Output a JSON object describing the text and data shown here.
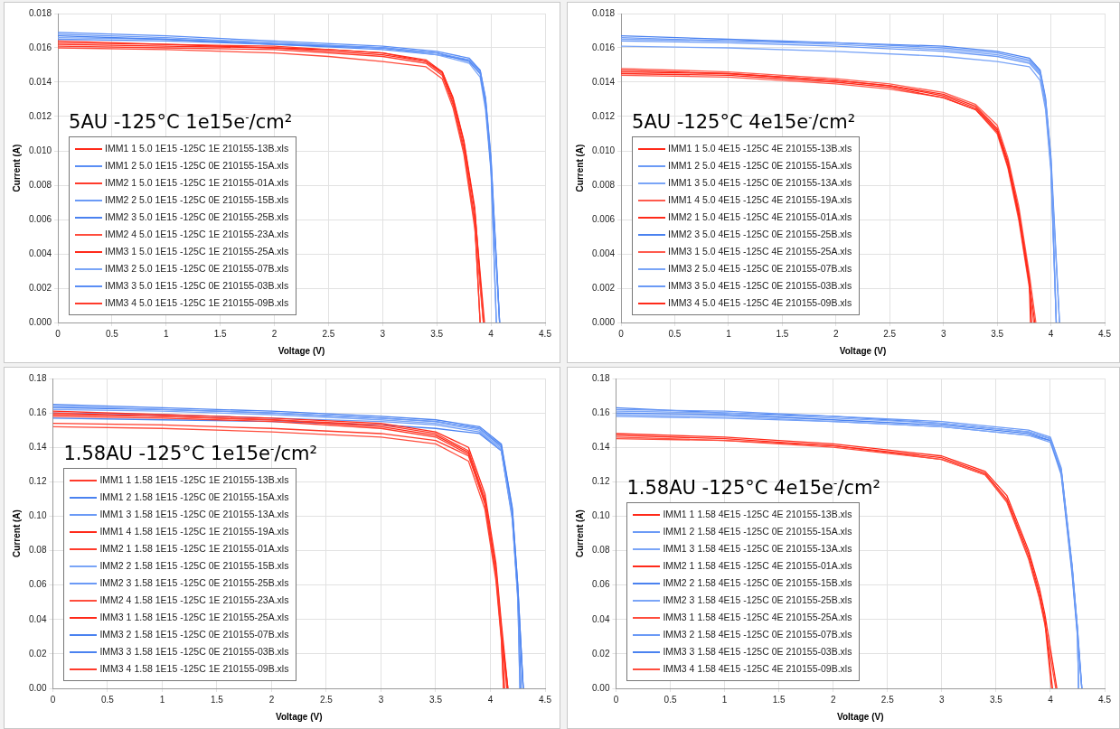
{
  "chart_data": [
    {
      "type": "line",
      "title": "5AU -125°C 1e15e$^{-}$/cm²",
      "xlabel": "Voltage (V)",
      "ylabel": "Current (A)",
      "xlim": [
        0,
        4.5
      ],
      "xticks": [
        0,
        0.5,
        1,
        1.5,
        2,
        2.5,
        3,
        3.5,
        4,
        4.5
      ],
      "ylim": [
        0,
        0.018
      ],
      "yticks": [
        {
          "value": 0,
          "label": "0.000"
        },
        {
          "value": 0.002,
          "label": "0.002"
        },
        {
          "value": 0.004,
          "label": "0.004"
        },
        {
          "value": 0.006,
          "label": "0.006"
        },
        {
          "value": 0.008,
          "label": "0.008"
        },
        {
          "value": 0.01,
          "label": "0.010"
        },
        {
          "value": 0.012,
          "label": "0.012"
        },
        {
          "value": 0.014,
          "label": "0.014"
        },
        {
          "value": 0.016,
          "label": "0.016"
        },
        {
          "value": 0.018,
          "label": "0.018"
        }
      ],
      "grid": true,
      "legend": "bottom left",
      "marker": "none",
      "line_style": "solid",
      "series": [
        {
          "name": "IMM1 1 5.0 1E15 -125C 1E 210155-13B.xls",
          "color": "#ff2a1a",
          "x": [
            0,
            1,
            2,
            2.5,
            3,
            3.4,
            3.55,
            3.65,
            3.75,
            3.85,
            3.94
          ],
          "values": [
            0.0164,
            0.0162,
            0.016,
            0.0159,
            0.0157,
            0.0153,
            0.0146,
            0.013,
            0.0105,
            0.0065,
            0
          ]
        },
        {
          "name": "IMM1 2 5.0 1E15 -125C 0E 210155-15A.xls",
          "color": "#5a8ef5",
          "x": [
            0,
            1,
            2,
            3,
            3.5,
            3.8,
            3.9,
            3.95,
            4,
            4.08
          ],
          "values": [
            0.0169,
            0.0167,
            0.0164,
            0.0161,
            0.0158,
            0.0154,
            0.0147,
            0.013,
            0.0095,
            0
          ]
        },
        {
          "name": "IMM2 1 5.0 1E15 -125C 1E 210155-01A.xls",
          "color": "#ff3b2b",
          "x": [
            0,
            1,
            2,
            2.5,
            3,
            3.4,
            3.55,
            3.65,
            3.75,
            3.85,
            3.9
          ],
          "values": [
            0.0163,
            0.0162,
            0.0161,
            0.0159,
            0.0157,
            0.0152,
            0.0145,
            0.0128,
            0.0102,
            0.006,
            0
          ]
        },
        {
          "name": "IMM2 2 5.0 1E15 -125C 0E 210155-15B.xls",
          "color": "#6b9af6",
          "x": [
            0,
            1,
            2,
            3,
            3.5,
            3.8,
            3.9,
            3.95,
            4,
            4.05
          ],
          "values": [
            0.0168,
            0.0166,
            0.0163,
            0.016,
            0.0157,
            0.0153,
            0.0146,
            0.0128,
            0.0092,
            0
          ]
        },
        {
          "name": "IMM2 3 5.0 1E15 -125C 0E 210155-25B.xls",
          "color": "#4a82f0",
          "x": [
            0,
            1,
            2,
            3,
            3.5,
            3.8,
            3.9,
            3.95,
            4,
            4.08
          ],
          "values": [
            0.0167,
            0.0165,
            0.0162,
            0.016,
            0.0157,
            0.0152,
            0.0145,
            0.0127,
            0.009,
            0
          ]
        },
        {
          "name": "IMM2 4 5.0 1E15 -125C 1E 210155-23A.xls",
          "color": "#ff4d3d",
          "x": [
            0,
            1,
            2,
            2.5,
            3,
            3.4,
            3.55,
            3.65,
            3.75,
            3.85,
            3.93
          ],
          "values": [
            0.016,
            0.0159,
            0.0157,
            0.0155,
            0.0152,
            0.0149,
            0.0142,
            0.0125,
            0.0098,
            0.0055,
            0
          ]
        },
        {
          "name": "IMM3 1 5.0 1E15 -125C 1E 210155-25A.xls",
          "color": "#ff2a1a",
          "x": [
            0,
            1,
            2,
            2.5,
            3,
            3.4,
            3.55,
            3.65,
            3.75,
            3.85,
            3.93
          ],
          "values": [
            0.0162,
            0.0161,
            0.016,
            0.0158,
            0.0156,
            0.0152,
            0.0146,
            0.0131,
            0.0106,
            0.0067,
            0
          ]
        },
        {
          "name": "IMM3 2 5.0 1E15 -125C 0E 210155-07B.xls",
          "color": "#7aa5f7",
          "x": [
            0,
            1,
            2,
            3,
            3.5,
            3.8,
            3.9,
            3.95,
            4,
            4.05
          ],
          "values": [
            0.0166,
            0.0165,
            0.0163,
            0.016,
            0.0156,
            0.0151,
            0.0143,
            0.0124,
            0.0088,
            0
          ]
        },
        {
          "name": "IMM3 3 5.0 1E15 -125C 0E 210155-03B.xls",
          "color": "#5a8ef5",
          "x": [
            0,
            1,
            2,
            3,
            3.5,
            3.8,
            3.9,
            3.95,
            4,
            4.08
          ],
          "values": [
            0.0165,
            0.0164,
            0.0162,
            0.0159,
            0.0156,
            0.0153,
            0.0147,
            0.0131,
            0.0097,
            0
          ]
        },
        {
          "name": "IMM3 4 5.0 1E15 -125C 1E 210155-09B.xls",
          "color": "#ff3b2b",
          "x": [
            0,
            1,
            2,
            2.5,
            3,
            3.4,
            3.55,
            3.65,
            3.75,
            3.85,
            3.9
          ],
          "values": [
            0.0161,
            0.016,
            0.0159,
            0.0157,
            0.0155,
            0.0151,
            0.0144,
            0.0127,
            0.01,
            0.0058,
            0
          ]
        }
      ]
    },
    {
      "type": "line",
      "title": "5AU -125°C 4e15e$^{-}$/cm²",
      "xlabel": "Voltage (V)",
      "ylabel": "Current (A)",
      "xlim": [
        0,
        4.5
      ],
      "xticks": [
        0,
        0.5,
        1,
        1.5,
        2,
        2.5,
        3,
        3.5,
        4,
        4.5
      ],
      "ylim": [
        0,
        0.018
      ],
      "yticks": [
        {
          "value": 0,
          "label": "0.000"
        },
        {
          "value": 0.002,
          "label": "0.002"
        },
        {
          "value": 0.004,
          "label": "0.004"
        },
        {
          "value": 0.006,
          "label": "0.006"
        },
        {
          "value": 0.008,
          "label": "0.008"
        },
        {
          "value": 0.01,
          "label": "0.010"
        },
        {
          "value": 0.012,
          "label": "0.012"
        },
        {
          "value": 0.014,
          "label": "0.014"
        },
        {
          "value": 0.016,
          "label": "0.016"
        },
        {
          "value": 0.018,
          "label": "0.018"
        }
      ],
      "grid": true,
      "legend": "bottom left",
      "marker": "none",
      "line_style": "solid",
      "series": [
        {
          "name": "IMM1 1 5.0 4E15 -125C 4E 210155-13B.xls",
          "color": "#ff2a1a",
          "x": [
            0,
            1,
            2,
            2.5,
            3,
            3.3,
            3.5,
            3.6,
            3.7,
            3.8,
            3.82
          ],
          "values": [
            0.0147,
            0.0145,
            0.0141,
            0.0138,
            0.0133,
            0.0126,
            0.0113,
            0.0094,
            0.0065,
            0.0025,
            0
          ]
        },
        {
          "name": "IMM1 2 5.0 4E15 -125C 0E 210155-15A.xls",
          "color": "#6b9af6",
          "x": [
            0,
            1,
            2,
            3,
            3.5,
            3.8,
            3.9,
            3.95,
            4,
            4.05
          ],
          "values": [
            0.0166,
            0.0164,
            0.0163,
            0.016,
            0.0157,
            0.0153,
            0.0146,
            0.013,
            0.0095,
            0
          ]
        },
        {
          "name": "IMM1 3 5.0 4E15 -125C 0E 210155-13A.xls",
          "color": "#7aa5f7",
          "x": [
            0,
            1,
            2,
            3,
            3.5,
            3.8,
            3.9,
            3.95,
            4,
            4.08
          ],
          "values": [
            0.0165,
            0.0164,
            0.0162,
            0.0159,
            0.0156,
            0.0152,
            0.0145,
            0.0128,
            0.0092,
            0
          ]
        },
        {
          "name": "IMM1 4 5.0 4E15 -125C 4E 210155-19A.xls",
          "color": "#ff5a4d",
          "x": [
            0,
            1,
            2,
            2.5,
            3,
            3.3,
            3.5,
            3.6,
            3.7,
            3.8,
            3.86
          ],
          "values": [
            0.0148,
            0.0146,
            0.0142,
            0.0139,
            0.0134,
            0.0127,
            0.0115,
            0.0096,
            0.0068,
            0.0028,
            0
          ]
        },
        {
          "name": "IMM2 1 5.0 4E15 -125C 4E 210155-01A.xls",
          "color": "#ff2a1a",
          "x": [
            0,
            1,
            2,
            2.5,
            3,
            3.3,
            3.5,
            3.6,
            3.7,
            3.8,
            3.81
          ],
          "values": [
            0.0145,
            0.0144,
            0.014,
            0.0137,
            0.0131,
            0.0124,
            0.0111,
            0.0091,
            0.0062,
            0.0022,
            0
          ]
        },
        {
          "name": "IMM2 3 5.0 4E15 -125C 0E 210155-25B.xls",
          "color": "#4a82f0",
          "x": [
            0,
            1,
            2,
            3,
            3.5,
            3.8,
            3.9,
            3.95,
            4,
            4.08
          ],
          "values": [
            0.0167,
            0.0165,
            0.0163,
            0.0161,
            0.0158,
            0.0154,
            0.0147,
            0.0131,
            0.0097,
            0
          ]
        },
        {
          "name": "IMM3 1 5.0 4E15 -125C 4E 210155-25A.xls",
          "color": "#ff5a4d",
          "x": [
            0,
            1,
            2,
            2.5,
            3,
            3.3,
            3.5,
            3.6,
            3.7,
            3.8,
            3.84
          ],
          "values": [
            0.0144,
            0.0143,
            0.0139,
            0.0136,
            0.0131,
            0.0124,
            0.011,
            0.009,
            0.006,
            0.002,
            0
          ]
        },
        {
          "name": "IMM3 2 5.0 4E15 -125C 0E 210155-07B.xls",
          "color": "#7aa5f7",
          "x": [
            0,
            1,
            2,
            3,
            3.5,
            3.8,
            3.9,
            3.95,
            4,
            4.05
          ],
          "values": [
            0.0161,
            0.016,
            0.0158,
            0.0155,
            0.0152,
            0.0149,
            0.0141,
            0.0124,
            0.0088,
            0
          ]
        },
        {
          "name": "IMM3 3 5.0 4E15 -125C 0E 210155-03B.xls",
          "color": "#6b9af6",
          "x": [
            0,
            1,
            2,
            3,
            3.5,
            3.8,
            3.9,
            3.95,
            4,
            4.05
          ],
          "values": [
            0.0164,
            0.0163,
            0.0161,
            0.0158,
            0.0155,
            0.0151,
            0.0144,
            0.0127,
            0.0091,
            0
          ]
        },
        {
          "name": "IMM3 4 5.0 4E15 -125C 4E 210155-09B.xls",
          "color": "#ff2a1a",
          "x": [
            0,
            1,
            2,
            2.5,
            3,
            3.3,
            3.5,
            3.6,
            3.7,
            3.8,
            3.85
          ],
          "values": [
            0.0146,
            0.0145,
            0.0141,
            0.0138,
            0.0132,
            0.0125,
            0.0112,
            0.0093,
            0.0064,
            0.0024,
            0
          ]
        }
      ]
    },
    {
      "type": "line",
      "title": "1.58AU -125°C 1e15e$^{-}$/cm²",
      "xlabel": "Voltage (V)",
      "ylabel": "Current (A)",
      "xlim": [
        0,
        4.5
      ],
      "xticks": [
        0,
        0.5,
        1,
        1.5,
        2,
        2.5,
        3,
        3.5,
        4,
        4.5
      ],
      "ylim": [
        0,
        0.18
      ],
      "yticks": [
        {
          "value": 0,
          "label": "0.00"
        },
        {
          "value": 0.02,
          "label": "0.02"
        },
        {
          "value": 0.04,
          "label": "0.04"
        },
        {
          "value": 0.06,
          "label": "0.06"
        },
        {
          "value": 0.08,
          "label": "0.08"
        },
        {
          "value": 0.1,
          "label": "0.10"
        },
        {
          "value": 0.12,
          "label": "0.12"
        },
        {
          "value": 0.14,
          "label": "0.14"
        },
        {
          "value": 0.16,
          "label": "0.16"
        },
        {
          "value": 0.18,
          "label": "0.18"
        }
      ],
      "grid": true,
      "legend": "bottom left",
      "marker": "none",
      "line_style": "solid",
      "series": [
        {
          "name": "IMM1 1 1.58 1E15 -125C 1E 210155-13B.xls",
          "color": "#ff3b2b",
          "x": [
            0,
            1,
            2,
            3,
            3.5,
            3.8,
            3.95,
            4.05,
            4.1,
            4.13
          ],
          "values": [
            0.16,
            0.158,
            0.156,
            0.153,
            0.148,
            0.138,
            0.11,
            0.07,
            0.035,
            0
          ]
        },
        {
          "name": "IMM1 2 1.58 1E15 -125C 0E 210155-15A.xls",
          "color": "#4a82f0",
          "x": [
            0,
            1,
            2,
            3,
            3.5,
            3.9,
            4.1,
            4.2,
            4.25,
            4.3
          ],
          "values": [
            0.165,
            0.163,
            0.161,
            0.158,
            0.156,
            0.152,
            0.142,
            0.105,
            0.06,
            0
          ]
        },
        {
          "name": "IMM1 3 1.58 1E15 -125C 0E 210155-13A.xls",
          "color": "#6b9af6",
          "x": [
            0,
            1,
            2,
            3,
            3.5,
            3.9,
            4.1,
            4.2,
            4.25,
            4.27
          ],
          "values": [
            0.164,
            0.162,
            0.16,
            0.157,
            0.155,
            0.151,
            0.14,
            0.102,
            0.056,
            0
          ]
        },
        {
          "name": "IMM1 4 1.58 1E15 -125C 1E 210155-19A.xls",
          "color": "#ff2a1a",
          "x": [
            0,
            1,
            2,
            3,
            3.5,
            3.8,
            3.95,
            4.05,
            4.1,
            4.16
          ],
          "values": [
            0.161,
            0.159,
            0.157,
            0.154,
            0.149,
            0.14,
            0.113,
            0.073,
            0.038,
            0
          ]
        },
        {
          "name": "IMM2 1 1.58 1E15 -125C 1E 210155-01A.xls",
          "color": "#ff3b2b",
          "x": [
            0,
            1,
            2,
            3,
            3.5,
            3.8,
            3.95,
            4.05,
            4.1,
            4.12
          ],
          "values": [
            0.158,
            0.157,
            0.155,
            0.151,
            0.146,
            0.136,
            0.107,
            0.066,
            0.03,
            0
          ]
        },
        {
          "name": "IMM2 2 1.58 1E15 -125C 0E 210155-15B.xls",
          "color": "#7aa5f7",
          "x": [
            0,
            1,
            2,
            3,
            3.5,
            3.9,
            4.1,
            4.2,
            4.25,
            4.27
          ],
          "values": [
            0.162,
            0.161,
            0.159,
            0.156,
            0.154,
            0.15,
            0.139,
            0.1,
            0.054,
            0
          ]
        },
        {
          "name": "IMM2 3 1.58 1E15 -125C 0E 210155-25B.xls",
          "color": "#6b9af6",
          "x": [
            0,
            1,
            2,
            3,
            3.5,
            3.9,
            4.1,
            4.2,
            4.25,
            4.3
          ],
          "values": [
            0.16,
            0.159,
            0.157,
            0.155,
            0.153,
            0.149,
            0.138,
            0.098,
            0.052,
            0
          ]
        },
        {
          "name": "IMM2 4 1.58 1E15 -125C 1E 210155-23A.xls",
          "color": "#ff4d3d",
          "x": [
            0,
            1,
            2,
            3,
            3.5,
            3.8,
            3.95,
            4.05,
            4.1,
            4.12
          ],
          "values": [
            0.152,
            0.151,
            0.149,
            0.146,
            0.142,
            0.132,
            0.104,
            0.063,
            0.028,
            0
          ]
        },
        {
          "name": "IMM3 1 1.58 1E15 -125C 1E 210155-25A.xls",
          "color": "#ff2a1a",
          "x": [
            0,
            1,
            2,
            3,
            3.5,
            3.8,
            3.95,
            4.05,
            4.1,
            4.16
          ],
          "values": [
            0.159,
            0.158,
            0.156,
            0.152,
            0.147,
            0.137,
            0.109,
            0.068,
            0.033,
            0
          ]
        },
        {
          "name": "IMM3 2 1.58 1E15 -125C 0E 210155-07B.xls",
          "color": "#4a82f0",
          "x": [
            0,
            1,
            2,
            3,
            3.5,
            3.9,
            4.1,
            4.2,
            4.25,
            4.28
          ],
          "values": [
            0.157,
            0.156,
            0.155,
            0.153,
            0.151,
            0.148,
            0.138,
            0.1,
            0.055,
            0
          ]
        },
        {
          "name": "IMM3 3 1.58 1E15 -125C 0E 210155-03B.xls",
          "color": "#4a82f0",
          "x": [
            0,
            1,
            2,
            3,
            3.5,
            3.9,
            4.1,
            4.2,
            4.25,
            4.3
          ],
          "values": [
            0.163,
            0.162,
            0.16,
            0.157,
            0.155,
            0.151,
            0.141,
            0.104,
            0.06,
            0
          ]
        },
        {
          "name": "IMM3 4 1.58 1E15 -125C 1E 210155-09B.xls",
          "color": "#ff3b2b",
          "x": [
            0,
            1,
            2,
            3,
            3.5,
            3.8,
            3.95,
            4.05,
            4.1,
            4.15
          ],
          "values": [
            0.154,
            0.153,
            0.151,
            0.148,
            0.144,
            0.135,
            0.108,
            0.068,
            0.034,
            0
          ]
        }
      ]
    },
    {
      "type": "line",
      "title": "1.58AU -125°C 4e15e$^{-}$/cm²",
      "xlabel": "Voltage (V)",
      "ylabel": "Current (A)",
      "xlim": [
        0,
        4.5
      ],
      "xticks": [
        0,
        0.5,
        1,
        1.5,
        2,
        2.5,
        3,
        3.5,
        4,
        4.5
      ],
      "ylim": [
        0,
        0.18
      ],
      "yticks": [
        {
          "value": 0,
          "label": "0.00"
        },
        {
          "value": 0.02,
          "label": "0.02"
        },
        {
          "value": 0.04,
          "label": "0.04"
        },
        {
          "value": 0.06,
          "label": "0.06"
        },
        {
          "value": 0.08,
          "label": "0.08"
        },
        {
          "value": 0.1,
          "label": "0.10"
        },
        {
          "value": 0.12,
          "label": "0.12"
        },
        {
          "value": 0.14,
          "label": "0.14"
        },
        {
          "value": 0.16,
          "label": "0.16"
        },
        {
          "value": 0.18,
          "label": "0.18"
        }
      ],
      "grid": true,
      "legend": "bottom left",
      "marker": "none",
      "line_style": "solid",
      "series": [
        {
          "name": "IMM1 1 1.58 4E15 -125C 4E 210155-13B.xls",
          "color": "#ff2a1a",
          "x": [
            0,
            1,
            2,
            3,
            3.4,
            3.6,
            3.8,
            3.9,
            3.95,
            4.02
          ],
          "values": [
            0.147,
            0.145,
            0.141,
            0.134,
            0.125,
            0.11,
            0.078,
            0.055,
            0.04,
            0
          ]
        },
        {
          "name": "IMM1 2 1.58 4E15 -125C 0E 210155-15A.xls",
          "color": "#6b9af6",
          "x": [
            0,
            1,
            2,
            3,
            3.8,
            4,
            4.1,
            4.2,
            4.25,
            4.29
          ],
          "values": [
            0.162,
            0.161,
            0.158,
            0.155,
            0.15,
            0.146,
            0.128,
            0.072,
            0.035,
            0
          ]
        },
        {
          "name": "IMM1 3 1.58 4E15 -125C 0E 210155-13A.xls",
          "color": "#7aa5f7",
          "x": [
            0,
            1,
            2,
            3,
            3.8,
            4,
            4.1,
            4.2,
            4.25,
            4.26
          ],
          "values": [
            0.161,
            0.16,
            0.157,
            0.154,
            0.149,
            0.145,
            0.126,
            0.07,
            0.033,
            0
          ]
        },
        {
          "name": "IMM2 1 1.58 4E15 -125C 4E 210155-01A.xls",
          "color": "#ff2a1a",
          "x": [
            0,
            1,
            2,
            3,
            3.4,
            3.6,
            3.8,
            3.9,
            3.95,
            4.06
          ],
          "values": [
            0.148,
            0.146,
            0.142,
            0.135,
            0.126,
            0.112,
            0.08,
            0.058,
            0.043,
            0
          ]
        },
        {
          "name": "IMM2 2 1.58 4E15 -125C 0E 210155-15B.xls",
          "color": "#4a82f0",
          "x": [
            0,
            1,
            2,
            3,
            3.8,
            4,
            4.1,
            4.2,
            4.25,
            4.29
          ],
          "values": [
            0.16,
            0.159,
            0.156,
            0.153,
            0.148,
            0.144,
            0.125,
            0.068,
            0.031,
            0
          ]
        },
        {
          "name": "IMM2 3 1.58 4E15 -125C 0E 210155-25B.xls",
          "color": "#7aa5f7",
          "x": [
            0,
            1,
            2,
            3,
            3.8,
            4,
            4.1,
            4.2,
            4.25,
            4.26
          ],
          "values": [
            0.159,
            0.158,
            0.155,
            0.152,
            0.147,
            0.143,
            0.124,
            0.066,
            0.03,
            0
          ]
        },
        {
          "name": "IMM3 1 1.58 4E15 -125C 4E 210155-25A.xls",
          "color": "#ff4d3d",
          "x": [
            0,
            1,
            2,
            3,
            3.4,
            3.6,
            3.8,
            3.9,
            3.95,
            4.01
          ],
          "values": [
            0.145,
            0.144,
            0.14,
            0.133,
            0.124,
            0.109,
            0.076,
            0.053,
            0.038,
            0
          ]
        },
        {
          "name": "IMM3 2 1.58 4E15 -125C 0E 210155-07B.xls",
          "color": "#6b9af6",
          "x": [
            0,
            1,
            2,
            3,
            3.8,
            4,
            4.1,
            4.2,
            4.25,
            4.29
          ],
          "values": [
            0.158,
            0.157,
            0.155,
            0.152,
            0.147,
            0.144,
            0.127,
            0.07,
            0.034,
            0
          ]
        },
        {
          "name": "IMM3 3 1.58 4E15 -125C 0E 210155-03B.xls",
          "color": "#4a82f0",
          "x": [
            0,
            1,
            2,
            3,
            3.8,
            4,
            4.1,
            4.2,
            4.25,
            4.26
          ],
          "values": [
            0.163,
            0.16,
            0.158,
            0.154,
            0.149,
            0.145,
            0.127,
            0.071,
            0.034,
            0
          ]
        },
        {
          "name": "IMM3 4 1.58 4E15 -125C 4E 210155-09B.xls",
          "color": "#ff4d3d",
          "x": [
            0,
            1,
            2,
            3,
            3.4,
            3.6,
            3.8,
            3.9,
            3.95,
            4.05
          ],
          "values": [
            0.146,
            0.144,
            0.141,
            0.133,
            0.124,
            0.108,
            0.075,
            0.052,
            0.037,
            0
          ]
        }
      ]
    }
  ]
}
